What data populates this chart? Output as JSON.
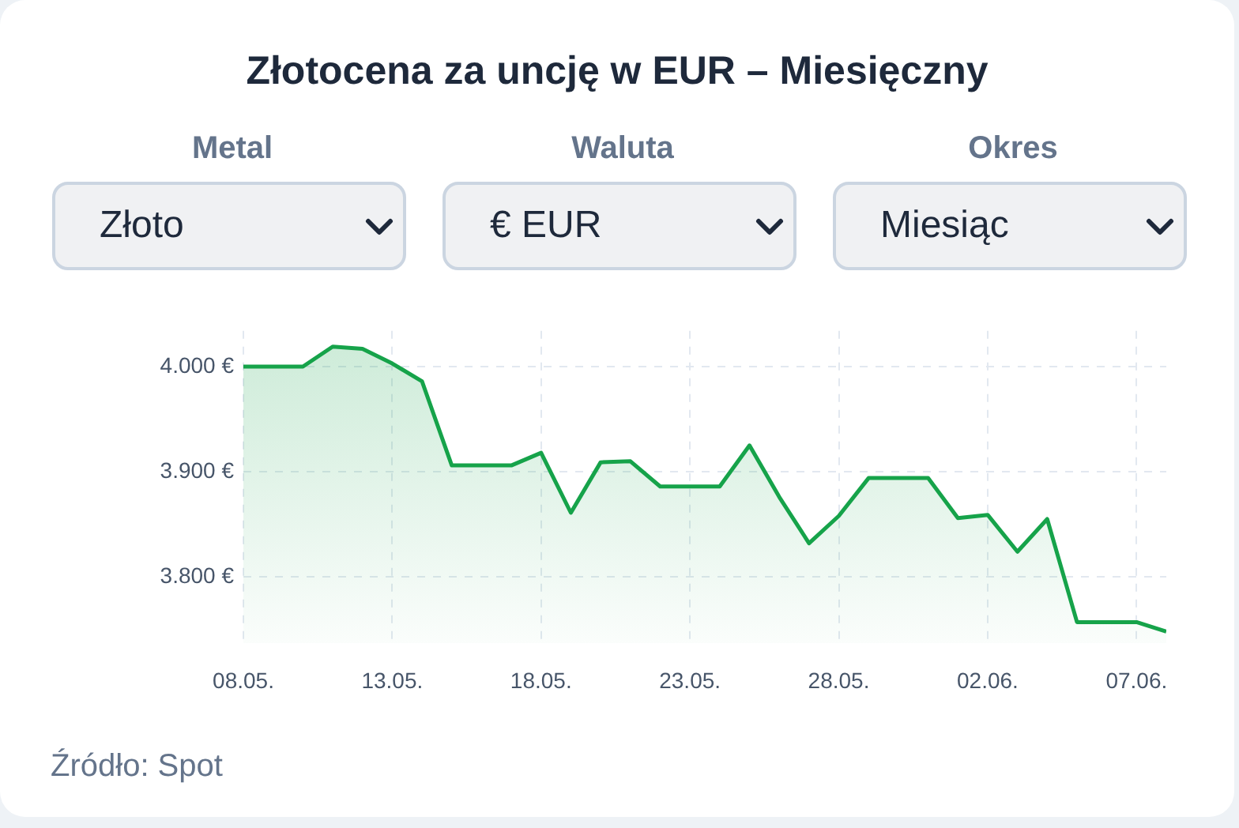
{
  "chart_data": {
    "type": "area",
    "title": "Złotocena za uncję w EUR – Miesięczny",
    "x": [
      "--05-08",
      "--05-09",
      "--05-10",
      "--05-11",
      "--05-12",
      "--05-13",
      "--05-14",
      "--05-15",
      "--05-16",
      "--05-17",
      "--05-18",
      "--05-19",
      "--05-20",
      "--05-21",
      "--05-22",
      "--05-23",
      "--05-24",
      "--05-25",
      "--05-26",
      "--05-27",
      "--05-28",
      "--05-29",
      "--05-30",
      "--05-31",
      "--06-01",
      "--06-02",
      "--06-03",
      "--06-04",
      "--06-05",
      "--06-06",
      "--06-07",
      "--06-08"
    ],
    "values": [
      4000,
      4000,
      4000,
      4019,
      4017,
      4003,
      3986,
      3906,
      3906,
      3906,
      3918,
      3861,
      3909,
      3910,
      3886,
      3886,
      3886,
      3925,
      3876,
      3832,
      3858,
      3894,
      3894,
      3894,
      3856,
      3859,
      3824,
      3855,
      3757,
      3757,
      3757,
      3748
    ],
    "color": "#16a34a",
    "xlim": [
      "--05-08",
      "--06-08"
    ],
    "xticks": [
      {
        "value": "--05-08",
        "label": "08.05."
      },
      {
        "value": "--05-13",
        "label": "13.05."
      },
      {
        "value": "--05-18",
        "label": "18.05."
      },
      {
        "value": "--05-23",
        "label": "23.05."
      },
      {
        "value": "--05-28",
        "label": "28.05."
      },
      {
        "value": "--06-02",
        "label": "02.06."
      },
      {
        "value": "--06-07",
        "label": "07.06."
      }
    ],
    "ylim": [
      3737,
      4034
    ],
    "yticks": [
      {
        "value": 3800,
        "label": "3.800 €"
      },
      {
        "value": 3900,
        "label": "3.900 €"
      },
      {
        "value": 4000,
        "label": "4.000 €"
      }
    ],
    "grid": true,
    "annotations": [
      "Metal",
      "Złoto",
      "Waluta",
      "€ EUR",
      "Okres",
      "Miesiąc",
      "Źródło: Spot"
    ]
  }
}
